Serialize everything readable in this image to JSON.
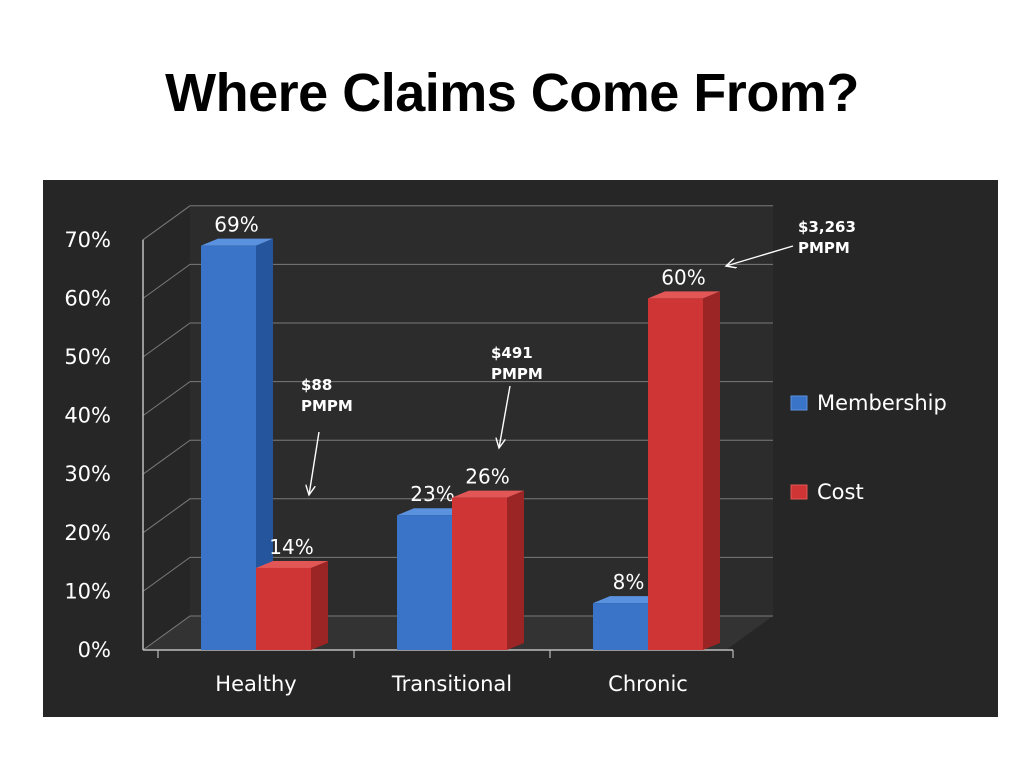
{
  "slide": {
    "title": "Where Claims Come From?"
  },
  "colors": {
    "membership": "#3a74c8",
    "membership_side": "#25559c",
    "membership_top": "#5b92e0",
    "cost": "#d03535",
    "cost_side": "#9b2424",
    "cost_top": "#e25656",
    "panel_background": "#262626",
    "text": "#ffffff"
  },
  "chart_data": {
    "type": "bar",
    "categories": [
      "Healthy",
      "Transitional",
      "Chronic"
    ],
    "series": [
      {
        "name": "Membership",
        "values": [
          69,
          23,
          8
        ]
      },
      {
        "name": "Cost",
        "values": [
          14,
          26,
          60
        ]
      }
    ],
    "data_labels": {
      "Membership": [
        "69%",
        "23%",
        "8%"
      ],
      "Cost": [
        "14%",
        "26%",
        "60%"
      ]
    },
    "y_ticks": [
      "0%",
      "10%",
      "20%",
      "30%",
      "40%",
      "50%",
      "60%",
      "70%"
    ],
    "ylim": [
      0,
      70
    ],
    "xlabel": "",
    "ylabel": "",
    "grid": true,
    "legend_position": "right",
    "style": "3d-clustered-column",
    "annotations": [
      {
        "line1": "$88",
        "line2": "PMPM",
        "category": "Healthy",
        "series": "Cost"
      },
      {
        "line1": "$491",
        "line2": "PMPM",
        "category": "Transitional",
        "series": "Cost"
      },
      {
        "line1": "$3,263",
        "line2": "PMPM",
        "category": "Chronic",
        "series": "Cost"
      }
    ]
  }
}
